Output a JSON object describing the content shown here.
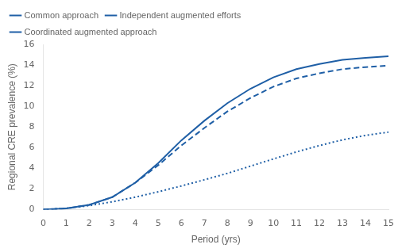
{
  "chart_data": {
    "type": "line",
    "xlabel": "Period (yrs)",
    "ylabel": "Regional CRE prevalence (%)",
    "x": [
      0,
      1,
      2,
      3,
      4,
      5,
      6,
      7,
      8,
      9,
      10,
      11,
      12,
      13,
      14,
      15
    ],
    "series": [
      {
        "name": "Common approach",
        "color": "#1F5FA6",
        "line_style": "solid",
        "values": [
          0,
          0.1,
          0.45,
          1.2,
          2.6,
          4.5,
          6.7,
          8.6,
          10.3,
          11.7,
          12.8,
          13.6,
          14.1,
          14.5,
          14.7,
          14.85
        ]
      },
      {
        "name": "Independent augmented efforts",
        "color": "#1F5FA6",
        "line_style": "dashed",
        "values": [
          0,
          0.1,
          0.45,
          1.2,
          2.6,
          4.3,
          6.2,
          7.9,
          9.5,
          10.8,
          11.9,
          12.7,
          13.2,
          13.6,
          13.8,
          13.95
        ]
      },
      {
        "name": "Coordinated augmented approach",
        "color": "#1F5FA6",
        "line_style": "dotted",
        "values": [
          0,
          0.12,
          0.38,
          0.75,
          1.2,
          1.72,
          2.28,
          2.88,
          3.5,
          4.2,
          4.9,
          5.58,
          6.2,
          6.75,
          7.18,
          7.5
        ]
      }
    ],
    "xlim": [
      0,
      15
    ],
    "ylim": [
      0,
      16
    ],
    "xticks": [
      0,
      1,
      2,
      3,
      4,
      5,
      6,
      7,
      8,
      9,
      10,
      11,
      12,
      13,
      14,
      15
    ],
    "yticks": [
      0,
      2,
      4,
      6,
      8,
      10,
      12,
      14,
      16
    ],
    "grid": false,
    "legend": "upper left"
  }
}
